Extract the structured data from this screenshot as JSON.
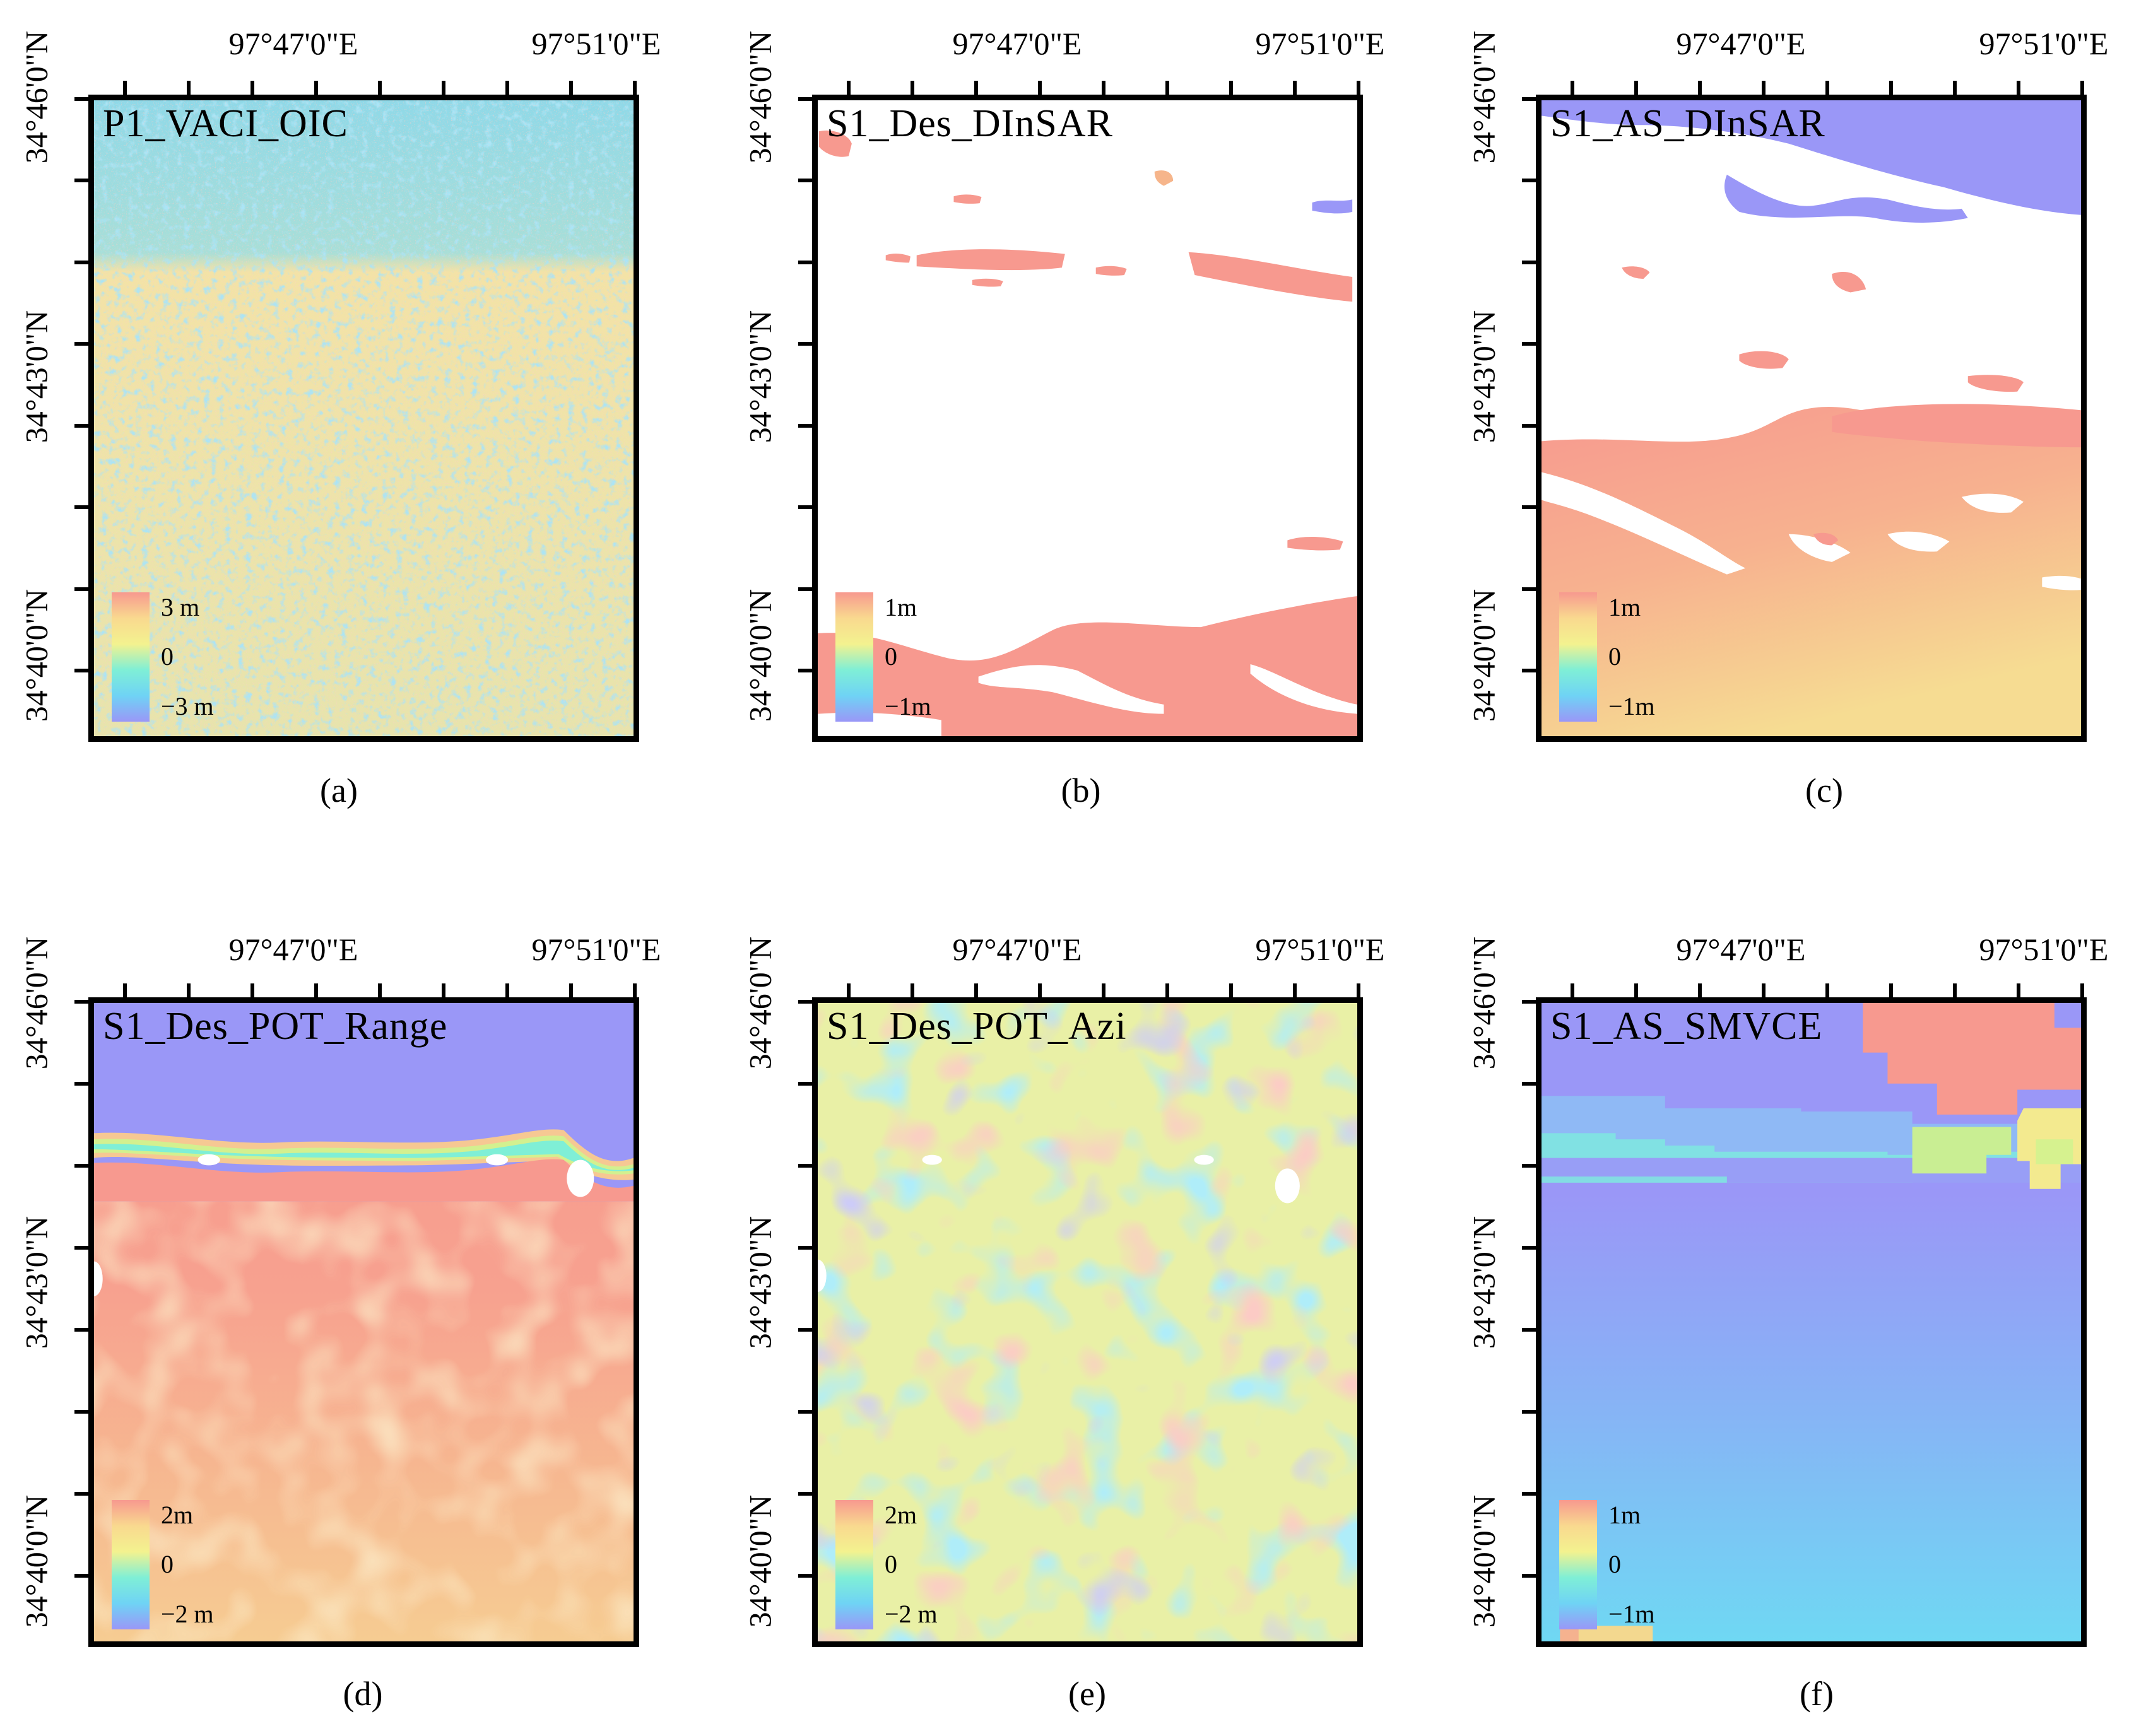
{
  "figure": {
    "axes": {
      "lon_ticks": [
        "97°47'0\"E",
        "97°51'0\"E"
      ],
      "lat_ticks": [
        "34°46'0\"N",
        "34°43'0\"N",
        "34°40'0\"N"
      ]
    },
    "panels": [
      {
        "id": "a",
        "title": "P1_VACI_OIC",
        "caption": "(a)",
        "legend": {
          "max": "3 m",
          "mid": "0",
          "min": "−3 m",
          "colors": [
            "#f7998f",
            "#f9d98f",
            "#f3f28f",
            "#7fefd6",
            "#6fd3f5",
            "#9a97f7"
          ]
        }
      },
      {
        "id": "b",
        "title": "S1_Des_DInSAR",
        "caption": "(b)",
        "legend": {
          "max": "1m",
          "mid": "0",
          "min": "−1m",
          "colors": [
            "#f7998f",
            "#f9d98f",
            "#f3f28f",
            "#7fefd6",
            "#6fd3f5",
            "#9a97f7"
          ]
        }
      },
      {
        "id": "c",
        "title": "S1_AS_DInSAR",
        "caption": "(c)",
        "legend": {
          "max": "1m",
          "mid": "0",
          "min": "−1m",
          "colors": [
            "#f7998f",
            "#f9d98f",
            "#f3f28f",
            "#7fefd6",
            "#6fd3f5",
            "#9a97f7"
          ]
        }
      },
      {
        "id": "d",
        "title": "S1_Des_POT_Range",
        "caption": "(d)",
        "legend": {
          "max": "2m",
          "mid": "0",
          "min": "−2 m",
          "colors": [
            "#f7998f",
            "#f9d98f",
            "#f3f28f",
            "#7fefd6",
            "#6fd3f5",
            "#9a97f7"
          ]
        }
      },
      {
        "id": "e",
        "title": "S1_Des_POT_Azi",
        "caption": "(e)",
        "legend": {
          "max": "2m",
          "mid": "0",
          "min": "−2 m",
          "colors": [
            "#f7998f",
            "#f9d98f",
            "#f3f28f",
            "#7fefd6",
            "#6fd3f5",
            "#9a97f7"
          ]
        }
      },
      {
        "id": "f",
        "title": "S1_AS_SMVCE",
        "caption": "(f)",
        "legend": {
          "max": "1m",
          "mid": "0",
          "min": "−1m",
          "colors": [
            "#f7998f",
            "#f9d98f",
            "#f3f28f",
            "#7fefd6",
            "#6fd3f5",
            "#9a97f7"
          ]
        }
      }
    ]
  }
}
